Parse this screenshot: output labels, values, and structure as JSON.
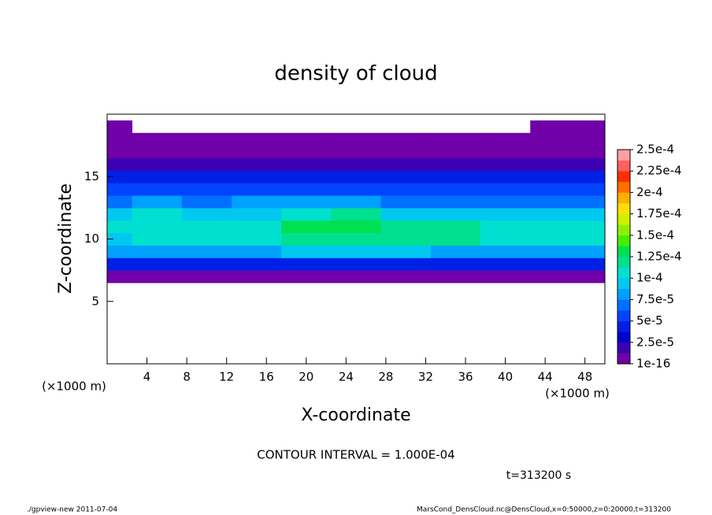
{
  "chart_data": {
    "type": "contourf",
    "title": "density of cloud",
    "x_label": "X-coordinate",
    "y_label": "Z-coordinate",
    "x_unit": "(×1000 m)",
    "y_unit": "(×1000 m)",
    "xlim": [
      0,
      50
    ],
    "ylim": [
      0,
      20
    ],
    "xticks": [
      4,
      8,
      12,
      16,
      20,
      24,
      28,
      32,
      36,
      40,
      44,
      48
    ],
    "yticks": [
      5,
      10,
      15
    ],
    "x": [
      0,
      5,
      10,
      15,
      20,
      25,
      30,
      35,
      40,
      45,
      50
    ],
    "z_coords": [
      6,
      7,
      8,
      9,
      10,
      11,
      12,
      13,
      14,
      15,
      16,
      17,
      18,
      19
    ],
    "z": [
      [
        0,
        0,
        0,
        0,
        0,
        0,
        0,
        0,
        0,
        0,
        0
      ],
      [
        5e-06,
        5e-06,
        5e-06,
        5e-06,
        5e-06,
        5e-06,
        5e-06,
        5e-06,
        5e-06,
        5e-06,
        5e-06
      ],
      [
        4e-05,
        4e-05,
        4e-05,
        4e-05,
        4e-05,
        4e-05,
        4e-05,
        4e-05,
        4e-05,
        4e-05,
        4e-05
      ],
      [
        7.5e-05,
        8e-05,
        8e-05,
        8.5e-05,
        9e-05,
        9e-05,
        9e-05,
        8.5e-05,
        8.5e-05,
        8e-05,
        8e-05
      ],
      [
        9.5e-05,
        0.000105,
        0.000105,
        0.00011,
        0.00012,
        0.00012,
        0.000115,
        0.000115,
        0.00011,
        0.000105,
        0.0001
      ],
      [
        0.0001,
        0.00011,
        0.000105,
        0.00011,
        0.00013,
        0.000135,
        0.00012,
        0.000115,
        0.00011,
        0.000105,
        0.0001
      ],
      [
        9e-05,
        0.000105,
        9.5e-05,
        9.5e-05,
        0.00011,
        0.00012,
        9.5e-05,
        9e-05,
        9.5e-05,
        9.5e-05,
        9e-05
      ],
      [
        7e-05,
        8e-05,
        7e-05,
        7.5e-05,
        8e-05,
        8.5e-05,
        7e-05,
        7e-05,
        7e-05,
        7e-05,
        7e-05
      ],
      [
        5.5e-05,
        5.5e-05,
        5e-05,
        6e-05,
        6e-05,
        6e-05,
        5.5e-05,
        5.5e-05,
        5.5e-05,
        5e-05,
        5e-05
      ],
      [
        4.5e-05,
        4.5e-05,
        4.5e-05,
        4.5e-05,
        4.5e-05,
        4.5e-05,
        4.5e-05,
        4.5e-05,
        4.5e-05,
        4.5e-05,
        4.5e-05
      ],
      [
        2e-05,
        2e-05,
        2e-05,
        2e-05,
        2e-05,
        2e-05,
        2e-05,
        2e-05,
        2e-05,
        2e-05,
        2e-05
      ],
      [
        5e-06,
        5e-06,
        5e-06,
        5e-06,
        5e-06,
        5e-06,
        5e-06,
        5e-06,
        5e-06,
        5e-06,
        5e-06
      ],
      [
        1e-10,
        1e-10,
        1e-10,
        1e-10,
        1e-10,
        1e-10,
        1e-10,
        1e-10,
        1e-10,
        1e-10,
        1e-10
      ],
      [
        1e-10,
        0,
        0,
        0,
        0,
        0,
        0,
        0,
        0,
        1e-10,
        1e-10
      ]
    ],
    "levels": [
      1e-16,
      1.25e-05,
      2.5e-05,
      3.75e-05,
      5e-05,
      6.25e-05,
      7.5e-05,
      8.75e-05,
      0.0001,
      0.0001125,
      0.000125,
      0.0001375,
      0.00015,
      0.0001625,
      0.000175,
      0.0001875,
      0.0002,
      0.0002125,
      0.000225,
      0.0002375,
      0.00025
    ],
    "colors": [
      "#7000a8",
      "#3c00b4",
      "#0000c8",
      "#0020e6",
      "#0044ff",
      "#0070ff",
      "#00a0ff",
      "#00c8f0",
      "#00e0d0",
      "#00e090",
      "#00e050",
      "#40f000",
      "#90f000",
      "#d0f000",
      "#ffe000",
      "#ffb000",
      "#ff7000",
      "#ff3000",
      "#ff6060",
      "#ffa0a0"
    ],
    "colorbar_ticks": [
      {
        "value": 1e-16,
        "label": "1e-16"
      },
      {
        "value": 2.5e-05,
        "label": "2.5e-5"
      },
      {
        "value": 5e-05,
        "label": "5e-5"
      },
      {
        "value": 7.5e-05,
        "label": "7.5e-5"
      },
      {
        "value": 0.0001,
        "label": "1e-4"
      },
      {
        "value": 0.000125,
        "label": "1.25e-4"
      },
      {
        "value": 0.00015,
        "label": "1.5e-4"
      },
      {
        "value": 0.000175,
        "label": "1.75e-4"
      },
      {
        "value": 0.0002,
        "label": "2e-4"
      },
      {
        "value": 0.000225,
        "label": "2.25e-4"
      },
      {
        "value": 0.00025,
        "label": "2.5e-4"
      }
    ],
    "contour_note": "CONTOUR INTERVAL = 1.000E-04",
    "time_note": "t=313200 s",
    "footer_left": "./gpview-new  2011-07-04",
    "footer_right": "MarsCond_DensCloud.nc@DensCloud,x=0:50000,z=0:20000,t=313200"
  }
}
